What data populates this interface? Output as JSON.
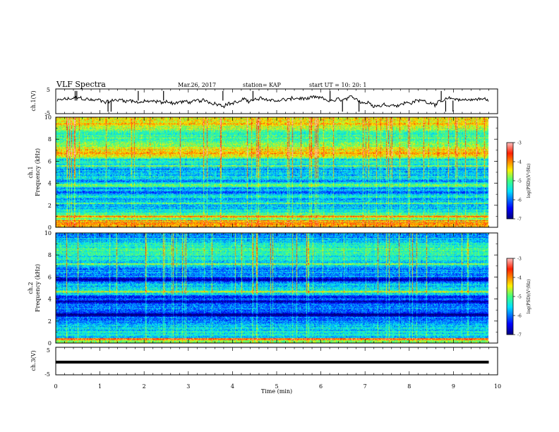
{
  "header": {
    "title": "VLF Spectra",
    "date": "Mar.26, 2017",
    "station": "station= KAP",
    "start": "start  UT =   10: 20: 1"
  },
  "chart_data": [
    {
      "type": "line",
      "name": "ch1-voltage",
      "ylabel": "ch.1(V)",
      "ylim": [
        -5,
        5
      ],
      "yticks": [
        "5",
        "-5"
      ],
      "xlim": [
        0,
        10
      ],
      "baseline": 0
    },
    {
      "type": "heatmap",
      "name": "ch1-spectrogram",
      "ylabel_top": "ch.1",
      "ylabel": "Frequency (kHz)",
      "ylim": [
        0,
        10
      ],
      "yticks": [
        "0",
        "2",
        "4",
        "6",
        "8",
        "10"
      ],
      "xlim": [
        0,
        9.8
      ],
      "colorbar": {
        "label": "log(PSD)(V²/Hz)",
        "range": [
          -7,
          -3
        ],
        "ticks": [
          "-3",
          "-4",
          "-5",
          "-6",
          "-7"
        ]
      },
      "dark_bands_khz": [
        3.2,
        3.6,
        4.2,
        6.2
      ],
      "bright_bands_khz": [
        0.6,
        1.0,
        2.2,
        5.6
      ]
    },
    {
      "type": "heatmap",
      "name": "ch2-spectrogram",
      "ylabel_top": "ch.2",
      "ylabel": "Frequency (kHz)",
      "ylim": [
        0,
        10
      ],
      "yticks": [
        "0",
        "2",
        "4",
        "6",
        "8",
        "10"
      ],
      "xlim": [
        0,
        9.8
      ],
      "colorbar": {
        "label": "log(PSD)(V²/Hz)",
        "range": [
          -7,
          -3
        ],
        "ticks": [
          "-3",
          "-4",
          "-5",
          "-6",
          "-7"
        ]
      },
      "dark_bands_khz": [
        3.8,
        4.2,
        5.8,
        2.6
      ],
      "bright_bands_khz": [
        0.4,
        4.7,
        7.2
      ]
    },
    {
      "type": "line",
      "name": "ch3-voltage",
      "ylabel": "ch.3(V)",
      "ylim": [
        -5,
        5
      ],
      "yticks": [
        "5",
        "-5"
      ],
      "xlim": [
        0,
        10
      ],
      "constant_value": -0.4
    }
  ],
  "xaxis": {
    "label": "Time (min)",
    "ticks": [
      "0",
      "1",
      "2",
      "3",
      "4",
      "5",
      "6",
      "7",
      "8",
      "9",
      "10"
    ]
  }
}
